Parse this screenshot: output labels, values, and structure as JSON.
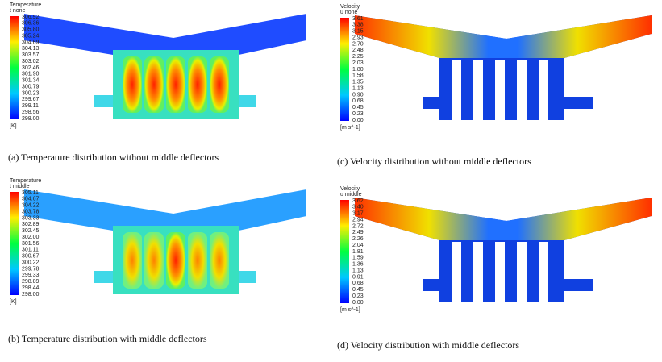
{
  "panels": [
    {
      "legend": {
        "title": "Temperature",
        "variable": "t none",
        "labels": [
          "306.92",
          "306.36",
          "305.80",
          "305.24",
          "304.69",
          "304.13",
          "303.57",
          "303.02",
          "302.46",
          "301.90",
          "301.34",
          "300.79",
          "300.23",
          "299.67",
          "299.11",
          "298.56",
          "298.00"
        ],
        "unit": "[K]"
      },
      "caption": "(a) Temperature distribution without middle deflectors"
    },
    {
      "legend": {
        "title": "Temperature",
        "variable": "t middle",
        "labels": [
          "305.11",
          "304.67",
          "304.22",
          "303.78",
          "303.33",
          "302.89",
          "302.45",
          "302.00",
          "301.56",
          "301.11",
          "300.67",
          "300.22",
          "299.78",
          "299.33",
          "298.89",
          "298.44",
          "298.00"
        ],
        "unit": "[K]"
      },
      "caption": "(b) Temperature distribution with middle deflectors"
    },
    {
      "legend": {
        "title": "Velocity",
        "variable": "u none",
        "labels": [
          "3.61",
          "3.38",
          "3.15",
          "2.93",
          "2.70",
          "2.48",
          "2.25",
          "2.03",
          "1.80",
          "1.58",
          "1.35",
          "1.13",
          "0.90",
          "0.68",
          "0.45",
          "0.23",
          "0.00"
        ],
        "unit": "[m s^-1]"
      },
      "caption": "(c) Velocity distribution without middle deflectors"
    },
    {
      "legend": {
        "title": "Velocity",
        "variable": "u middle",
        "labels": [
          "3.62",
          "3.40",
          "3.17",
          "2.94",
          "2.72",
          "2.49",
          "2.26",
          "2.04",
          "1.81",
          "1.59",
          "1.36",
          "1.13",
          "0.91",
          "0.68",
          "0.45",
          "0.23",
          "0.00"
        ],
        "unit": "[m s^-1]"
      },
      "caption": "(d) Velocity distribution with middle deflectors"
    }
  ]
}
